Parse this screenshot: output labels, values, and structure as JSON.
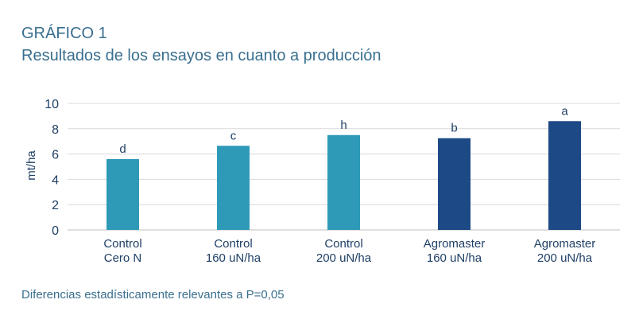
{
  "header": {
    "title": "GRÁFICO 1",
    "subtitle": "Resultados de los ensayos en cuanto a producción"
  },
  "footnote": "Diferencias estadísticamente relevantes a P=0,05",
  "chart_data": {
    "type": "bar",
    "categories": [
      [
        "Control",
        "Cero N"
      ],
      [
        "Control",
        "160 uN/ha"
      ],
      [
        "Control",
        "200 uN/ha"
      ],
      [
        "Agromaster",
        "160 uN/ha"
      ],
      [
        "Agromaster",
        "200 uN/ha"
      ]
    ],
    "values": [
      5.6,
      6.65,
      7.5,
      7.25,
      8.6
    ],
    "data_labels": [
      "d",
      "c",
      "h",
      "b",
      "a"
    ],
    "bar_colors": [
      "#2e9ab8",
      "#2e9ab8",
      "#2e9ab8",
      "#1d4a86",
      "#1d4a86"
    ],
    "ylabel": "mt/ha",
    "ylim": [
      0,
      10
    ],
    "yticks": [
      0,
      2,
      4,
      6,
      8,
      10
    ],
    "grid": true,
    "legend": "none"
  }
}
